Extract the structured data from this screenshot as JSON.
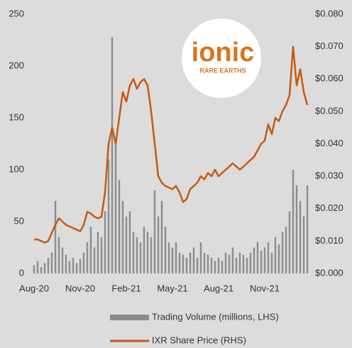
{
  "chart_data": {
    "type": "bar",
    "logo": {
      "name": "ionic",
      "tagline": "RARE EARTHS"
    },
    "categories": [
      "Aug-20",
      null,
      null,
      null,
      null,
      null,
      null,
      null,
      null,
      null,
      null,
      null,
      null,
      "Nov-20",
      null,
      null,
      null,
      null,
      null,
      null,
      null,
      null,
      null,
      null,
      null,
      null,
      "Feb-21",
      null,
      null,
      null,
      null,
      null,
      null,
      null,
      null,
      null,
      null,
      null,
      null,
      "May-21",
      null,
      null,
      null,
      null,
      null,
      null,
      null,
      null,
      null,
      null,
      null,
      null,
      "Aug-21",
      null,
      null,
      null,
      null,
      null,
      null,
      null,
      null,
      null,
      null,
      null,
      null,
      "Nov-21",
      null,
      null,
      null,
      null,
      null,
      null,
      null,
      null,
      null,
      null,
      null,
      null
    ],
    "series": [
      {
        "name": "Trading Volume (millions, LHS)",
        "color": "#8c8c8c",
        "values": [
          8,
          12,
          6,
          10,
          15,
          20,
          70,
          35,
          25,
          18,
          12,
          15,
          10,
          14,
          20,
          30,
          45,
          25,
          40,
          35,
          60,
          110,
          228,
          130,
          90,
          70,
          55,
          60,
          40,
          35,
          30,
          45,
          40,
          35,
          80,
          55,
          70,
          45,
          30,
          25,
          30,
          20,
          18,
          15,
          20,
          25,
          15,
          30,
          20,
          18,
          15,
          12,
          15,
          12,
          20,
          18,
          25,
          15,
          20,
          18,
          15,
          20,
          25,
          30,
          22,
          25,
          30,
          20,
          35,
          28,
          40,
          45,
          60,
          100,
          85,
          70,
          55,
          85
        ]
      },
      {
        "name": "IXR Share Price (RHS)",
        "color": "#c55a11",
        "type": "line",
        "axis": "y2",
        "values": [
          0.0105,
          0.0105,
          0.01,
          0.0095,
          0.01,
          0.0125,
          0.015,
          0.017,
          0.016,
          0.015,
          0.0145,
          0.014,
          0.0135,
          0.013,
          0.015,
          0.019,
          0.0185,
          0.0175,
          0.017,
          0.0175,
          0.025,
          0.04,
          0.045,
          0.04,
          0.048,
          0.056,
          0.053,
          0.058,
          0.06,
          0.057,
          0.059,
          0.06,
          0.058,
          0.05,
          0.04,
          0.03,
          0.028,
          0.027,
          0.0265,
          0.026,
          0.027,
          0.025,
          0.022,
          0.023,
          0.026,
          0.027,
          0.028,
          0.03,
          0.029,
          0.031,
          0.03,
          0.032,
          0.03,
          0.031,
          0.032,
          0.033,
          0.034,
          0.033,
          0.032,
          0.033,
          0.034,
          0.035,
          0.036,
          0.038,
          0.04,
          0.041,
          0.046,
          0.043,
          0.048,
          0.047,
          0.05,
          0.052,
          0.055,
          0.07,
          0.058,
          0.063,
          0.056,
          0.052
        ]
      }
    ],
    "ylim": [
      0,
      250
    ],
    "yticks": [
      0,
      50,
      100,
      150,
      200,
      250
    ],
    "y2lim": [
      0,
      0.08
    ],
    "y2ticks": [
      {
        "value": 0,
        "label": "$0.000"
      },
      {
        "value": 0.01,
        "label": "$0.010"
      },
      {
        "value": 0.02,
        "label": "$0.020"
      },
      {
        "value": 0.03,
        "label": "$0.030"
      },
      {
        "value": 0.04,
        "label": "$0.040"
      },
      {
        "value": 0.05,
        "label": "$0.050"
      },
      {
        "value": 0.06,
        "label": "$0.060"
      },
      {
        "value": 0.07,
        "label": "$0.070"
      },
      {
        "value": 0.08,
        "label": "$0.080"
      }
    ],
    "grid": false,
    "legend": "bottom"
  }
}
